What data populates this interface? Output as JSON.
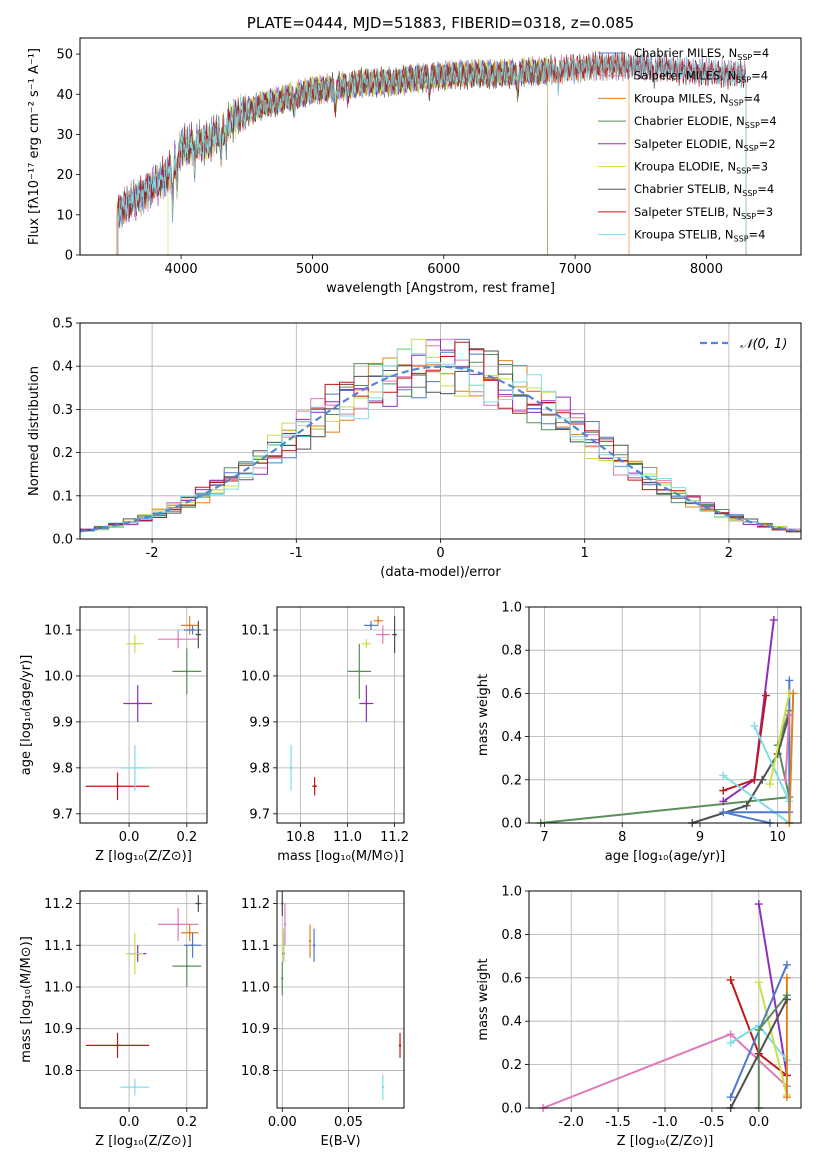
{
  "chart_data": [
    {
      "id": "spectrum",
      "type": "line",
      "title": "PLATE=0444, MJD=51883, FIBERID=0318, z=0.085",
      "xlabel": "wavelength [Angstrom, rest frame]",
      "ylabel": "Flux [fλ10⁻¹⁷ erg cm⁻² s⁻¹ A⁻¹]",
      "xlim": [
        3230,
        8720
      ],
      "ylim": [
        0,
        54
      ],
      "xticks": [
        4000,
        5000,
        6000,
        7000,
        8000
      ],
      "yticks": [
        0,
        10,
        20,
        30,
        40,
        50
      ],
      "grid": false,
      "legend_position": "top-right",
      "continuum": [
        [
          3520,
          11
        ],
        [
          3700,
          15
        ],
        [
          3900,
          20
        ],
        [
          4000,
          27
        ],
        [
          4200,
          28
        ],
        [
          4400,
          34
        ],
        [
          4600,
          37
        ],
        [
          4800,
          39
        ],
        [
          5000,
          41
        ],
        [
          5200,
          42
        ],
        [
          5400,
          43
        ],
        [
          5600,
          43
        ],
        [
          5800,
          44
        ],
        [
          6000,
          44.5
        ],
        [
          6200,
          45
        ],
        [
          6400,
          45
        ],
        [
          6600,
          45.5
        ],
        [
          6800,
          46
        ],
        [
          7000,
          46.5
        ],
        [
          7200,
          47
        ],
        [
          7400,
          47
        ],
        [
          7600,
          47
        ],
        [
          7800,
          46
        ],
        [
          8000,
          45.5
        ],
        [
          8200,
          45
        ],
        [
          8300,
          45
        ]
      ],
      "series": [
        {
          "name": "Chabrier MILES",
          "nssp": "4",
          "color": "#4f79cc",
          "start": 3520,
          "end": 8300,
          "dropout": null
        },
        {
          "name": "Salpeter MILES",
          "nssp": "4",
          "color": "#e07ab8",
          "start": 3520,
          "end": 8300,
          "dropout": null
        },
        {
          "name": "Kroupa MILES",
          "nssp": "4",
          "color": "#e0801f",
          "start": 3510,
          "end": 7410,
          "dropout": null
        },
        {
          "name": "Chabrier ELODIE",
          "nssp": "4",
          "color": "#5a8f5a",
          "start": 3520,
          "end": 6790,
          "dropout": null
        },
        {
          "name": "Salpeter ELODIE",
          "nssp": "2",
          "color": "#8f2fb8",
          "start": 3520,
          "end": 6790,
          "dropout": null
        },
        {
          "name": "Kroupa ELODIE",
          "nssp": "3",
          "color": "#c8e04a",
          "start": 3900,
          "end": 6790,
          "dropout": null
        },
        {
          "name": "Chabrier STELIB",
          "nssp": "4",
          "color": "#505050",
          "start": 3520,
          "end": 8300,
          "dropout": null
        },
        {
          "name": "Salpeter STELIB",
          "nssp": "3",
          "color": "#c01818",
          "start": 3520,
          "end": 8300,
          "dropout": null
        },
        {
          "name": "Kroupa STELIB",
          "nssp": "4",
          "color": "#7fdde6",
          "start": 3520,
          "end": 8300,
          "dropout": null
        }
      ]
    },
    {
      "id": "residuals",
      "type": "bar",
      "xlabel": "(data-model)/error",
      "ylabel": "Normed distribution",
      "xlim": [
        -2.5,
        2.5
      ],
      "ylim": [
        0,
        0.5
      ],
      "xticks": [
        -2,
        -1,
        0,
        1,
        2
      ],
      "yticks": [
        0.0,
        0.1,
        0.2,
        0.3,
        0.4,
        0.5
      ],
      "grid": true,
      "bin_width": 0.1,
      "legend": {
        "label": "𝒩(0, 1)",
        "position": "top-right"
      },
      "reference_color": "#5585d5"
    },
    {
      "id": "age-vs-Z",
      "type": "scatter",
      "xlabel": "Z [log₁₀(Z/Z⊙)]",
      "ylabel": "age  [log₁₀(age/yr)]",
      "xlim": [
        -0.17,
        0.27
      ],
      "ylim": [
        9.68,
        10.15
      ],
      "xticks": [
        0.0,
        0.2
      ],
      "yticks": [
        9.7,
        9.8,
        9.9,
        10.0,
        10.1
      ],
      "points": [
        {
          "x": -0.04,
          "y": 9.76,
          "ex": 0.11,
          "ey": 0.03,
          "color": "#c01818"
        },
        {
          "x": 0.02,
          "y": 9.8,
          "ex": 0.05,
          "ey": 0.05,
          "color": "#7fdde6"
        },
        {
          "x": 0.03,
          "y": 9.94,
          "ex": 0.05,
          "ey": 0.04,
          "color": "#8f2fb8"
        },
        {
          "x": 0.02,
          "y": 10.07,
          "ex": 0.03,
          "ey": 0.02,
          "color": "#c8e04a"
        },
        {
          "x": 0.2,
          "y": 10.01,
          "ex": 0.05,
          "ey": 0.05,
          "color": "#5a8f5a"
        },
        {
          "x": 0.17,
          "y": 10.08,
          "ex": 0.07,
          "ey": 0.02,
          "color": "#e07ab8"
        },
        {
          "x": 0.21,
          "y": 10.11,
          "ex": 0.03,
          "ey": 0.02,
          "color": "#e0801f"
        },
        {
          "x": 0.22,
          "y": 10.1,
          "ex": 0.03,
          "ey": 0.01,
          "color": "#4f79cc"
        },
        {
          "x": 0.24,
          "y": 10.09,
          "ex": 0.01,
          "ey": 0.03,
          "color": "#505050"
        }
      ]
    },
    {
      "id": "age-vs-mass",
      "type": "scatter",
      "xlabel": "mass [log₁₀(M/M⊙)]",
      "ylabel": "",
      "xlim": [
        10.7,
        11.24
      ],
      "ylim": [
        9.68,
        10.15
      ],
      "xticks": [
        10.8,
        11.0,
        11.2
      ],
      "yticks": [
        9.7,
        9.8,
        9.9,
        10.0,
        10.1
      ],
      "points": [
        {
          "x": 10.86,
          "y": 9.76,
          "ex": 0.01,
          "ey": 0.02,
          "color": "#c01818"
        },
        {
          "x": 10.76,
          "y": 9.8,
          "ex": 0.01,
          "ey": 0.05,
          "color": "#7fdde6"
        },
        {
          "x": 11.08,
          "y": 9.94,
          "ex": 0.03,
          "ey": 0.04,
          "color": "#8f2fb8"
        },
        {
          "x": 11.08,
          "y": 10.07,
          "ex": 0.02,
          "ey": 0.01,
          "color": "#c8e04a"
        },
        {
          "x": 11.05,
          "y": 10.01,
          "ex": 0.05,
          "ey": 0.06,
          "color": "#5a8f5a"
        },
        {
          "x": 11.15,
          "y": 10.09,
          "ex": 0.03,
          "ey": 0.02,
          "color": "#e07ab8"
        },
        {
          "x": 11.13,
          "y": 10.12,
          "ex": 0.02,
          "ey": 0.01,
          "color": "#e0801f"
        },
        {
          "x": 11.1,
          "y": 10.11,
          "ex": 0.03,
          "ey": 0.01,
          "color": "#4f79cc"
        },
        {
          "x": 11.2,
          "y": 10.09,
          "ex": 0.01,
          "ey": 0.04,
          "color": "#505050"
        }
      ]
    },
    {
      "id": "weight-vs-age",
      "type": "line",
      "xlabel": "age  [log₁₀(age/yr)]",
      "ylabel": "mass weight",
      "xlim": [
        6.8,
        10.3
      ],
      "ylim": [
        0,
        1
      ],
      "xticks": [
        7,
        8,
        9,
        10
      ],
      "yticks": [
        0.0,
        0.2,
        0.4,
        0.6,
        0.8,
        1.0
      ],
      "grid": true,
      "series": [
        {
          "color": "#5a8f5a",
          "points": [
            [
              6.95,
              0.0
            ],
            [
              10.15,
              0.12
            ],
            [
              10.0,
              0.36
            ],
            [
              10.15,
              0.52
            ]
          ]
        },
        {
          "color": "#8f2fb8",
          "points": [
            [
              9.3,
              0.1
            ],
            [
              9.7,
              0.2
            ],
            [
              9.95,
              0.94
            ]
          ]
        },
        {
          "color": "#c01818",
          "points": [
            [
              9.3,
              0.15
            ],
            [
              9.7,
              0.2
            ],
            [
              9.85,
              0.59
            ]
          ]
        },
        {
          "color": "#505050",
          "points": [
            [
              8.9,
              0.0
            ],
            [
              9.6,
              0.08
            ],
            [
              9.8,
              0.2
            ],
            [
              10.0,
              0.32
            ],
            [
              10.15,
              0.5
            ]
          ]
        },
        {
          "color": "#7fdde6",
          "points": [
            [
              9.3,
              0.22
            ],
            [
              10.15,
              0.0
            ],
            [
              10.15,
              0.1
            ],
            [
              9.7,
              0.45
            ]
          ]
        },
        {
          "color": "#4f79cc",
          "points": [
            [
              9.9,
              0.0
            ],
            [
              9.3,
              0.05
            ],
            [
              10.15,
              0.05
            ],
            [
              10.15,
              0.66
            ]
          ]
        },
        {
          "color": "#c8e04a",
          "points": [
            [
              9.9,
              0.18
            ],
            [
              10.15,
              0.6
            ]
          ]
        },
        {
          "color": "#e0801f",
          "points": [
            [
              10.15,
              0.0
            ],
            [
              10.2,
              0.6
            ]
          ]
        },
        {
          "color": "#e07ab8",
          "points": [
            [
              10.1,
              0.2
            ],
            [
              10.15,
              0.5
            ]
          ]
        }
      ]
    },
    {
      "id": "mass-vs-Z",
      "type": "scatter",
      "xlabel": "Z [log₁₀(Z/Z⊙)]",
      "ylabel": "mass [log₁₀(M/M⊙)]",
      "xlim": [
        -0.17,
        0.27
      ],
      "ylim": [
        10.71,
        11.23
      ],
      "xticks": [
        0.0,
        0.2
      ],
      "yticks": [
        10.8,
        10.9,
        11.0,
        11.1,
        11.2
      ],
      "points": [
        {
          "x": -0.04,
          "y": 10.86,
          "ex": 0.11,
          "ey": 0.03,
          "color": "#c01818"
        },
        {
          "x": 0.02,
          "y": 10.76,
          "ex": 0.05,
          "ey": 0.02,
          "color": "#7fdde6"
        },
        {
          "x": 0.03,
          "y": 11.08,
          "ex": 0.03,
          "ey": 0.02,
          "color": "#8f2fb8"
        },
        {
          "x": 0.02,
          "y": 11.08,
          "ex": 0.03,
          "ey": 0.05,
          "color": "#c8e04a"
        },
        {
          "x": 0.2,
          "y": 11.05,
          "ex": 0.05,
          "ey": 0.05,
          "color": "#5a8f5a"
        },
        {
          "x": 0.17,
          "y": 11.15,
          "ex": 0.07,
          "ey": 0.04,
          "color": "#e07ab8"
        },
        {
          "x": 0.21,
          "y": 11.13,
          "ex": 0.03,
          "ey": 0.02,
          "color": "#e0801f"
        },
        {
          "x": 0.22,
          "y": 11.1,
          "ex": 0.03,
          "ey": 0.03,
          "color": "#4f79cc"
        },
        {
          "x": 0.24,
          "y": 11.2,
          "ex": 0.01,
          "ey": 0.02,
          "color": "#505050"
        }
      ]
    },
    {
      "id": "mass-vs-ebv",
      "type": "scatter",
      "xlabel": "E(B-V)",
      "ylabel": "",
      "xlim": [
        -0.004,
        0.092
      ],
      "ylim": [
        10.71,
        11.23
      ],
      "xticks": [
        0.0,
        0.05
      ],
      "yticks": [
        10.8,
        10.9,
        11.0,
        11.1,
        11.2
      ],
      "points": [
        {
          "x": 0.089,
          "y": 10.86,
          "ex": 0.0,
          "ey": 0.03,
          "color": "#c01818"
        },
        {
          "x": 0.076,
          "y": 10.76,
          "ex": 0.0,
          "ey": 0.03,
          "color": "#7fdde6"
        },
        {
          "x": 0.001,
          "y": 11.08,
          "ex": 0.0,
          "ey": 0.02,
          "color": "#8f2fb8"
        },
        {
          "x": 0.001,
          "y": 11.1,
          "ex": 0.0,
          "ey": 0.04,
          "color": "#c8e04a"
        },
        {
          "x": 0.0,
          "y": 11.02,
          "ex": 0.0,
          "ey": 0.04,
          "color": "#5a8f5a"
        },
        {
          "x": 0.002,
          "y": 11.15,
          "ex": 0.0,
          "ey": 0.05,
          "color": "#e07ab8"
        },
        {
          "x": 0.021,
          "y": 11.11,
          "ex": 0.0,
          "ey": 0.04,
          "color": "#e0801f"
        },
        {
          "x": 0.024,
          "y": 11.1,
          "ex": 0.0,
          "ey": 0.04,
          "color": "#4f79cc"
        },
        {
          "x": 0.0,
          "y": 11.2,
          "ex": 0.0,
          "ey": 0.03,
          "color": "#505050"
        }
      ]
    },
    {
      "id": "weight-vs-Z",
      "type": "line",
      "xlabel": "Z [log₁₀(Z/Z⊙)]",
      "ylabel": "mass weight",
      "xlim": [
        -2.45,
        0.45
      ],
      "ylim": [
        0,
        1
      ],
      "xticks": [
        -2.0,
        -1.5,
        -1.0,
        -0.5,
        0.0
      ],
      "yticks": [
        0.0,
        0.2,
        0.4,
        0.6,
        0.8,
        1.0
      ],
      "grid": true,
      "series": [
        {
          "color": "#e07ab8",
          "points": [
            [
              -2.3,
              0.0
            ],
            [
              -0.3,
              0.34
            ],
            [
              0.3,
              0.1
            ]
          ]
        },
        {
          "color": "#8f2fb8",
          "points": [
            [
              0.0,
              0.94
            ],
            [
              0.3,
              0.15
            ]
          ]
        },
        {
          "color": "#c01818",
          "points": [
            [
              -0.3,
              0.59
            ],
            [
              0.0,
              0.25
            ],
            [
              0.3,
              0.15
            ]
          ]
        },
        {
          "color": "#7fdde6",
          "points": [
            [
              -0.3,
              0.3
            ],
            [
              0.0,
              0.38
            ],
            [
              0.3,
              0.22
            ]
          ]
        },
        {
          "color": "#c8e04a",
          "points": [
            [
              0.0,
              0.58
            ],
            [
              0.3,
              0.06
            ]
          ]
        },
        {
          "color": "#4f79cc",
          "points": [
            [
              -0.3,
              0.05
            ],
            [
              0.3,
              0.66
            ]
          ]
        },
        {
          "color": "#e0801f",
          "points": [
            [
              0.3,
              0.05
            ],
            [
              0.3,
              0.6
            ]
          ]
        },
        {
          "color": "#5a8f5a",
          "points": [
            [
              0.0,
              0.0
            ],
            [
              0.0,
              0.36
            ],
            [
              0.3,
              0.52
            ]
          ]
        },
        {
          "color": "#505050",
          "points": [
            [
              -0.3,
              0.0
            ],
            [
              0.3,
              0.5
            ]
          ]
        }
      ]
    }
  ]
}
